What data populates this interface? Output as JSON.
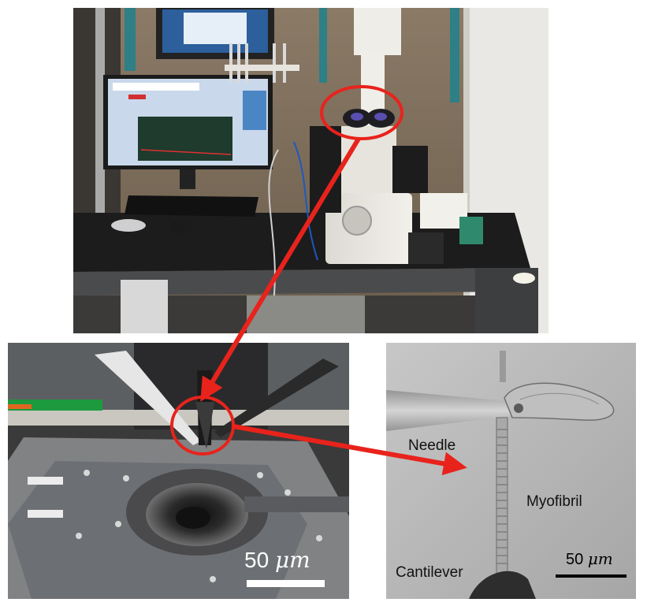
{
  "labels": {
    "needle": "Needle",
    "myofibril": "Myofibril",
    "cantilever": "Cantilever"
  },
  "scale_bars": {
    "left": {
      "number": "50",
      "unit": "μm"
    },
    "right": {
      "number": "50",
      "unit": "μm"
    }
  },
  "colors": {
    "annotation": "#e8231c",
    "scale_bar_left": "#ffffff",
    "scale_bar_right": "#000000"
  }
}
